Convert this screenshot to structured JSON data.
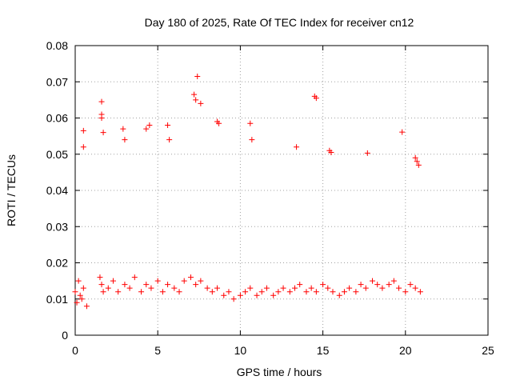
{
  "chart_data": {
    "type": "scatter",
    "title": "Day 180 of 2025, Rate Of TEC Index for receiver cn12",
    "xlabel": "GPS time / hours",
    "ylabel": "ROTI / TECUs",
    "xlim": [
      0,
      25
    ],
    "ylim": [
      0,
      0.08
    ],
    "xticks": [
      "0",
      "5",
      "10",
      "15",
      "20",
      "25"
    ],
    "yticks": [
      "0",
      "0.01",
      "0.02",
      "0.03",
      "0.04",
      "0.05",
      "0.06",
      "0.07",
      "0.08"
    ],
    "grid": true,
    "marker": "+",
    "color": "#ff0000",
    "series": [
      {
        "x": [
          0.0,
          0.1,
          0.2,
          0.3,
          0.4,
          0.5,
          0.7,
          1.5,
          1.6,
          1.7,
          2.0,
          2.3,
          2.6,
          3.0,
          3.3,
          3.6,
          4.0,
          4.3,
          4.6,
          5.0,
          5.3,
          5.6,
          6.0,
          6.3,
          6.6,
          7.0,
          7.3,
          7.6,
          8.0,
          8.3,
          8.6,
          9.0,
          9.3,
          9.6,
          10.0,
          10.3,
          10.6,
          11.0,
          11.3,
          11.6,
          12.0,
          12.3,
          12.6,
          13.0,
          13.3,
          13.6,
          14.0,
          14.3,
          14.6,
          15.0,
          15.3,
          15.6,
          16.0,
          16.3,
          16.6,
          17.0,
          17.3,
          17.6,
          18.0,
          18.3,
          18.6,
          19.0,
          19.3,
          19.6,
          20.0,
          20.3,
          20.6,
          20.9
        ],
        "y": [
          0.012,
          0.009,
          0.015,
          0.011,
          0.01,
          0.013,
          0.008,
          0.016,
          0.014,
          0.012,
          0.013,
          0.015,
          0.012,
          0.014,
          0.013,
          0.016,
          0.012,
          0.014,
          0.013,
          0.015,
          0.012,
          0.014,
          0.013,
          0.012,
          0.015,
          0.016,
          0.014,
          0.015,
          0.013,
          0.012,
          0.013,
          0.011,
          0.012,
          0.01,
          0.011,
          0.012,
          0.013,
          0.011,
          0.012,
          0.013,
          0.011,
          0.012,
          0.013,
          0.012,
          0.013,
          0.014,
          0.012,
          0.013,
          0.012,
          0.014,
          0.013,
          0.012,
          0.011,
          0.012,
          0.013,
          0.012,
          0.014,
          0.013,
          0.015,
          0.014,
          0.013,
          0.014,
          0.015,
          0.013,
          0.012,
          0.014,
          0.013,
          0.012
        ]
      },
      {
        "x": [
          0.5,
          0.5,
          1.6,
          1.6,
          1.6,
          1.7,
          2.9,
          3.0,
          4.3,
          4.5,
          5.6,
          5.7,
          7.2,
          7.3,
          7.4,
          7.6,
          8.6,
          8.7,
          10.6,
          10.7,
          13.4,
          14.5,
          14.6,
          15.4,
          15.5,
          17.7,
          19.8,
          20.6,
          20.7,
          20.8
        ],
        "y": [
          0.0565,
          0.052,
          0.0645,
          0.061,
          0.06,
          0.056,
          0.057,
          0.054,
          0.057,
          0.058,
          0.058,
          0.054,
          0.0665,
          0.065,
          0.0715,
          0.064,
          0.059,
          0.0585,
          0.0585,
          0.054,
          0.052,
          0.066,
          0.0655,
          0.051,
          0.0505,
          0.0503,
          0.0561,
          0.049,
          0.048,
          0.047
        ]
      }
    ]
  }
}
